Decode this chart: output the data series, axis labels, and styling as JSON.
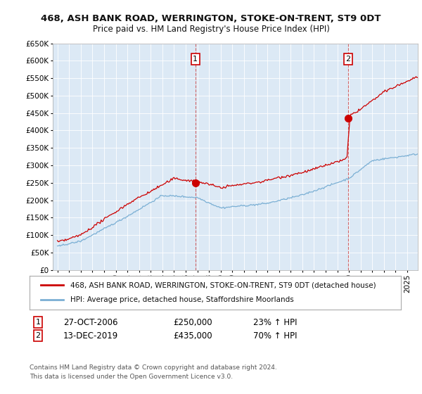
{
  "title": "468, ASH BANK ROAD, WERRINGTON, STOKE-ON-TRENT, ST9 0DT",
  "subtitle": "Price paid vs. HM Land Registry's House Price Index (HPI)",
  "red_label": "468, ASH BANK ROAD, WERRINGTON, STOKE-ON-TRENT, ST9 0DT (detached house)",
  "blue_label": "HPI: Average price, detached house, Staffordshire Moorlands",
  "sale1_date": "27-OCT-2006",
  "sale1_price": 250000,
  "sale1_hpi": "23% ↑ HPI",
  "sale2_date": "13-DEC-2019",
  "sale2_price": 435000,
  "sale2_hpi": "70% ↑ HPI",
  "footer": "Contains HM Land Registry data © Crown copyright and database right 2024.\nThis data is licensed under the Open Government Licence v3.0.",
  "ylim_min": 0,
  "ylim_max": 650000,
  "plot_bg_color": "#dce9f5",
  "fig_bg_color": "#ffffff",
  "grid_color": "#ffffff",
  "red_color": "#cc0000",
  "blue_color": "#7aafd4",
  "vline_color": "#cc4444",
  "sale1_x": 2006.83,
  "sale2_x": 2019.92
}
